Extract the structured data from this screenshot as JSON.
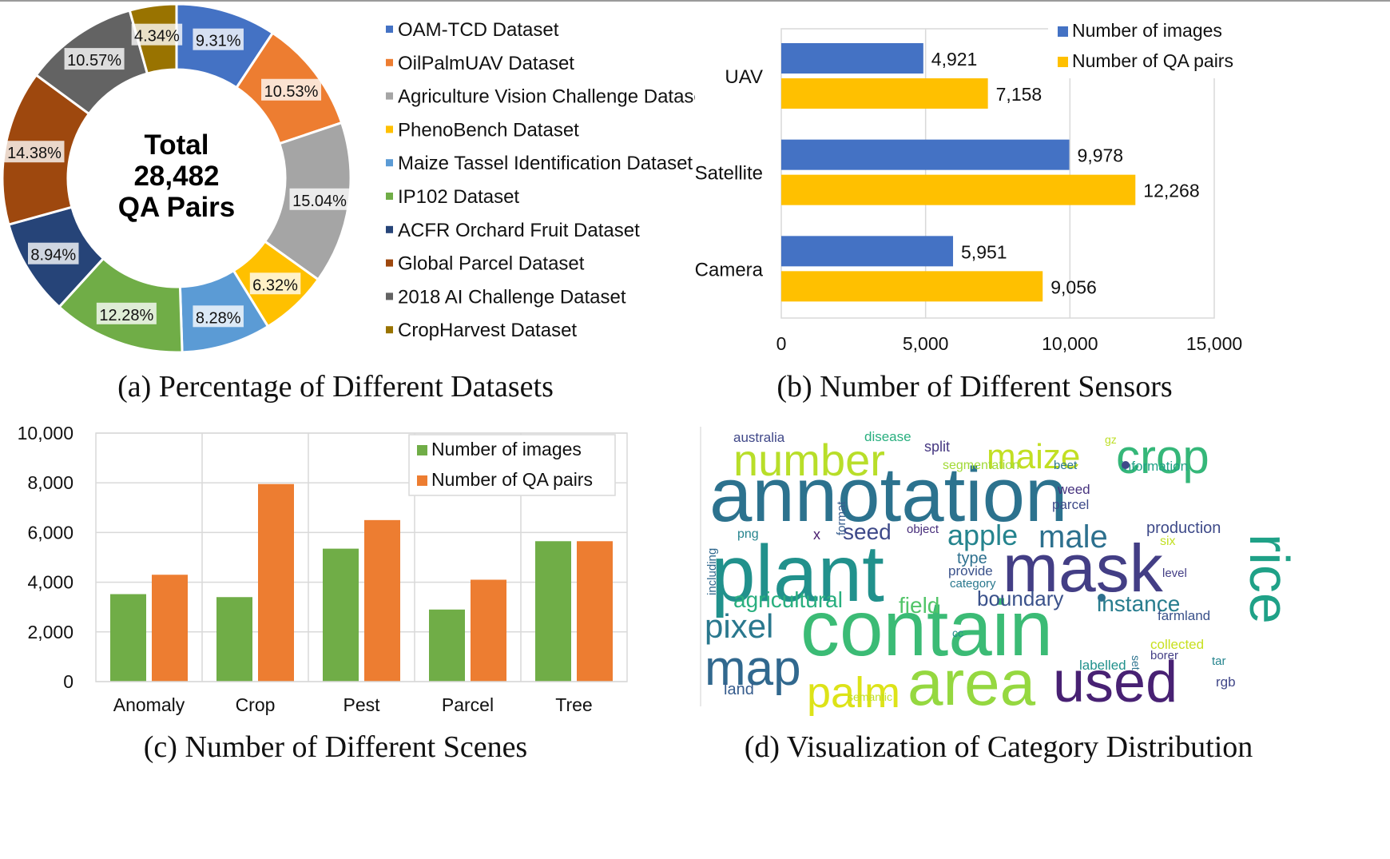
{
  "panel_a": {
    "caption": "(a) Percentage of Different Datasets",
    "center_lines": [
      "Total",
      "28,482",
      "QA Pairs"
    ],
    "chart_data": {
      "type": "pie",
      "slices": [
        {
          "label": "OAM-TCD Dataset",
          "value": 9.31,
          "text": "9.31%",
          "color": "#4472C4"
        },
        {
          "label": "OilPalmUAV Dataset",
          "value": 10.53,
          "text": "10.53%",
          "color": "#ED7D31"
        },
        {
          "label": "Agriculture Vision Challenge Dataset",
          "value": 15.04,
          "text": "15.04%",
          "color": "#A5A5A5"
        },
        {
          "label": "PhenoBench Dataset",
          "value": 6.32,
          "text": "6.32%",
          "color": "#FFC000"
        },
        {
          "label": "Maize Tassel Identification Dataset",
          "value": 8.28,
          "text": "8.28%",
          "color": "#5B9BD5"
        },
        {
          "label": "IP102 Dataset",
          "value": 12.28,
          "text": "12.28%",
          "color": "#70AD47"
        },
        {
          "label": "ACFR Orchard Fruit Dataset",
          "value": 8.94,
          "text": "8.94%",
          "color": "#264478"
        },
        {
          "label": "Global Parcel Dataset",
          "value": 14.38,
          "text": "14.38%",
          "color": "#9E480E"
        },
        {
          "label": "2018 AI Challenge Dataset",
          "value": 10.57,
          "text": "10.57%",
          "color": "#636363"
        },
        {
          "label": "CropHarvest Dataset",
          "value": 4.34,
          "text": "4.34%",
          "color": "#997300"
        }
      ]
    }
  },
  "panel_b": {
    "caption": "(b) Number of Different Sensors",
    "chart_data": {
      "type": "bar",
      "orientation": "horizontal",
      "categories": [
        "UAV",
        "Satellite",
        "Camera"
      ],
      "series": [
        {
          "name": "Number of images",
          "values": [
            4921,
            9978,
            5951
          ],
          "color": "#4472C4"
        },
        {
          "name": "Number of QA pairs",
          "values": [
            7158,
            12268,
            9056
          ],
          "color": "#FFC000"
        }
      ],
      "value_labels": [
        [
          "4,921",
          "9,978",
          "5,951"
        ],
        [
          "7,158",
          "12,268",
          "9,056"
        ]
      ],
      "xlim": [
        0,
        15000
      ],
      "xticks": [
        "0",
        "5,000",
        "10,000",
        "15,000"
      ],
      "grid": true,
      "legend": "top-right"
    }
  },
  "panel_c": {
    "caption": "(c) Number of Different Scenes",
    "chart_data": {
      "type": "bar",
      "categories": [
        "Anomaly",
        "Crop",
        "Pest",
        "Parcel",
        "Tree"
      ],
      "series": [
        {
          "name": "Number of images",
          "values": [
            3520,
            3400,
            5350,
            2900,
            5650
          ],
          "color": "#70AD47"
        },
        {
          "name": "Number of QA pairs",
          "values": [
            4300,
            7950,
            6500,
            4100,
            5650
          ],
          "color": "#ED7D31"
        }
      ],
      "ylim": [
        0,
        10000
      ],
      "yticks": [
        "0",
        "2,000",
        "4,000",
        "6,000",
        "8,000",
        "10,000"
      ],
      "grid": true,
      "legend": "top-right"
    }
  },
  "panel_d": {
    "caption": "(d) Visualization of Category Distribution",
    "words": [
      {
        "text": "annotation",
        "color": "#2c728e"
      },
      {
        "text": "plant",
        "color": "#21918c"
      },
      {
        "text": "contain",
        "color": "#3bbb75"
      },
      {
        "text": "mask",
        "color": "#433e85"
      },
      {
        "text": "area",
        "color": "#95d840"
      },
      {
        "text": "used",
        "color": "#482173"
      },
      {
        "text": "crop",
        "color": "#35b779"
      },
      {
        "text": "number",
        "color": "#b8de29"
      },
      {
        "text": "map",
        "color": "#31688e"
      },
      {
        "text": "rice",
        "color": "#1fa187"
      },
      {
        "text": "palm",
        "color": "#dde318"
      },
      {
        "text": "maize",
        "color": "#c2df23"
      },
      {
        "text": "pixel",
        "color": "#2a788e"
      },
      {
        "text": "male",
        "color": "#2d708e"
      },
      {
        "text": "apple",
        "color": "#25848e"
      },
      {
        "text": "agricultural",
        "color": "#29af7f"
      },
      {
        "text": "field",
        "color": "#52c569"
      },
      {
        "text": "boundary",
        "color": "#3b528b"
      },
      {
        "text": "instance",
        "color": "#287d8e"
      },
      {
        "text": "seed",
        "color": "#3e4989"
      },
      {
        "text": "type",
        "color": "#2d708e"
      },
      {
        "text": "production",
        "color": "#3e4a89"
      },
      {
        "text": "australia",
        "color": "#3f4788"
      },
      {
        "text": "disease",
        "color": "#29af7f"
      },
      {
        "text": "split",
        "color": "#453781"
      },
      {
        "text": "segmentation",
        "color": "#a2da37"
      },
      {
        "text": "gz",
        "color": "#bddf26"
      },
      {
        "text": "beet",
        "color": "#2a788e"
      },
      {
        "text": "information",
        "color": "#1fa187"
      },
      {
        "text": "weed",
        "color": "#46327e"
      },
      {
        "text": "parcel",
        "color": "#3e4a89"
      },
      {
        "text": "format",
        "color": "#365c8d"
      },
      {
        "text": "png",
        "color": "#25848e"
      },
      {
        "text": "x",
        "color": "#481c6e"
      },
      {
        "text": "object",
        "color": "#472c7a"
      },
      {
        "text": "provide",
        "color": "#3b528b"
      },
      {
        "text": "category",
        "color": "#2a788e"
      },
      {
        "text": "six",
        "color": "#c2df23"
      },
      {
        "text": "level",
        "color": "#433e85"
      },
      {
        "text": "including",
        "color": "#31688e"
      },
      {
        "text": "farmland",
        "color": "#3b528b"
      },
      {
        "text": "cc",
        "color": "#23898e"
      },
      {
        "text": "set",
        "color": "#2c728e"
      },
      {
        "text": "collected",
        "color": "#c8e020"
      },
      {
        "text": "borer",
        "color": "#433e85"
      },
      {
        "text": "labelled",
        "color": "#21918c"
      },
      {
        "text": "tar",
        "color": "#25848e"
      },
      {
        "text": "rgb",
        "color": "#404688"
      },
      {
        "text": "land",
        "color": "#365c8d"
      },
      {
        "text": "semantic",
        "color": "#c2df23"
      }
    ]
  }
}
